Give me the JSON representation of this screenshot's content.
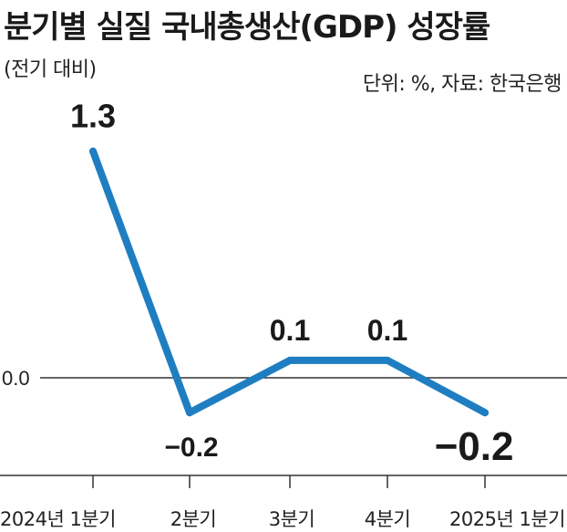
{
  "header": {
    "title": "분기별 실질 국내총생산(GDP) 성장률",
    "subtitle": "(전기 대비)",
    "source": "단위: %, 자료: 한국은행"
  },
  "colors": {
    "line": "#1f7ec1",
    "axis": "#333333"
  },
  "chart_data": {
    "type": "line",
    "title": "분기별 실질 국내총생산(GDP) 성장률",
    "subtitle": "(전기 대비)",
    "categories": [
      "2024년 1분기",
      "2분기",
      "3분기",
      "4분기",
      "2025년 1분기"
    ],
    "series": [
      {
        "values": [
          1.3,
          -0.2,
          0.1,
          0.1,
          -0.2
        ]
      }
    ],
    "data_labels": [
      "1.3",
      "−0.2",
      "0.1",
      "0.1",
      "−0.2"
    ],
    "y_reference": {
      "value": 0.0,
      "label": "0.0"
    },
    "ylim": [
      -0.6,
      1.6
    ],
    "unit": "%",
    "source": "한국은행",
    "grid": false,
    "legend": "none"
  }
}
